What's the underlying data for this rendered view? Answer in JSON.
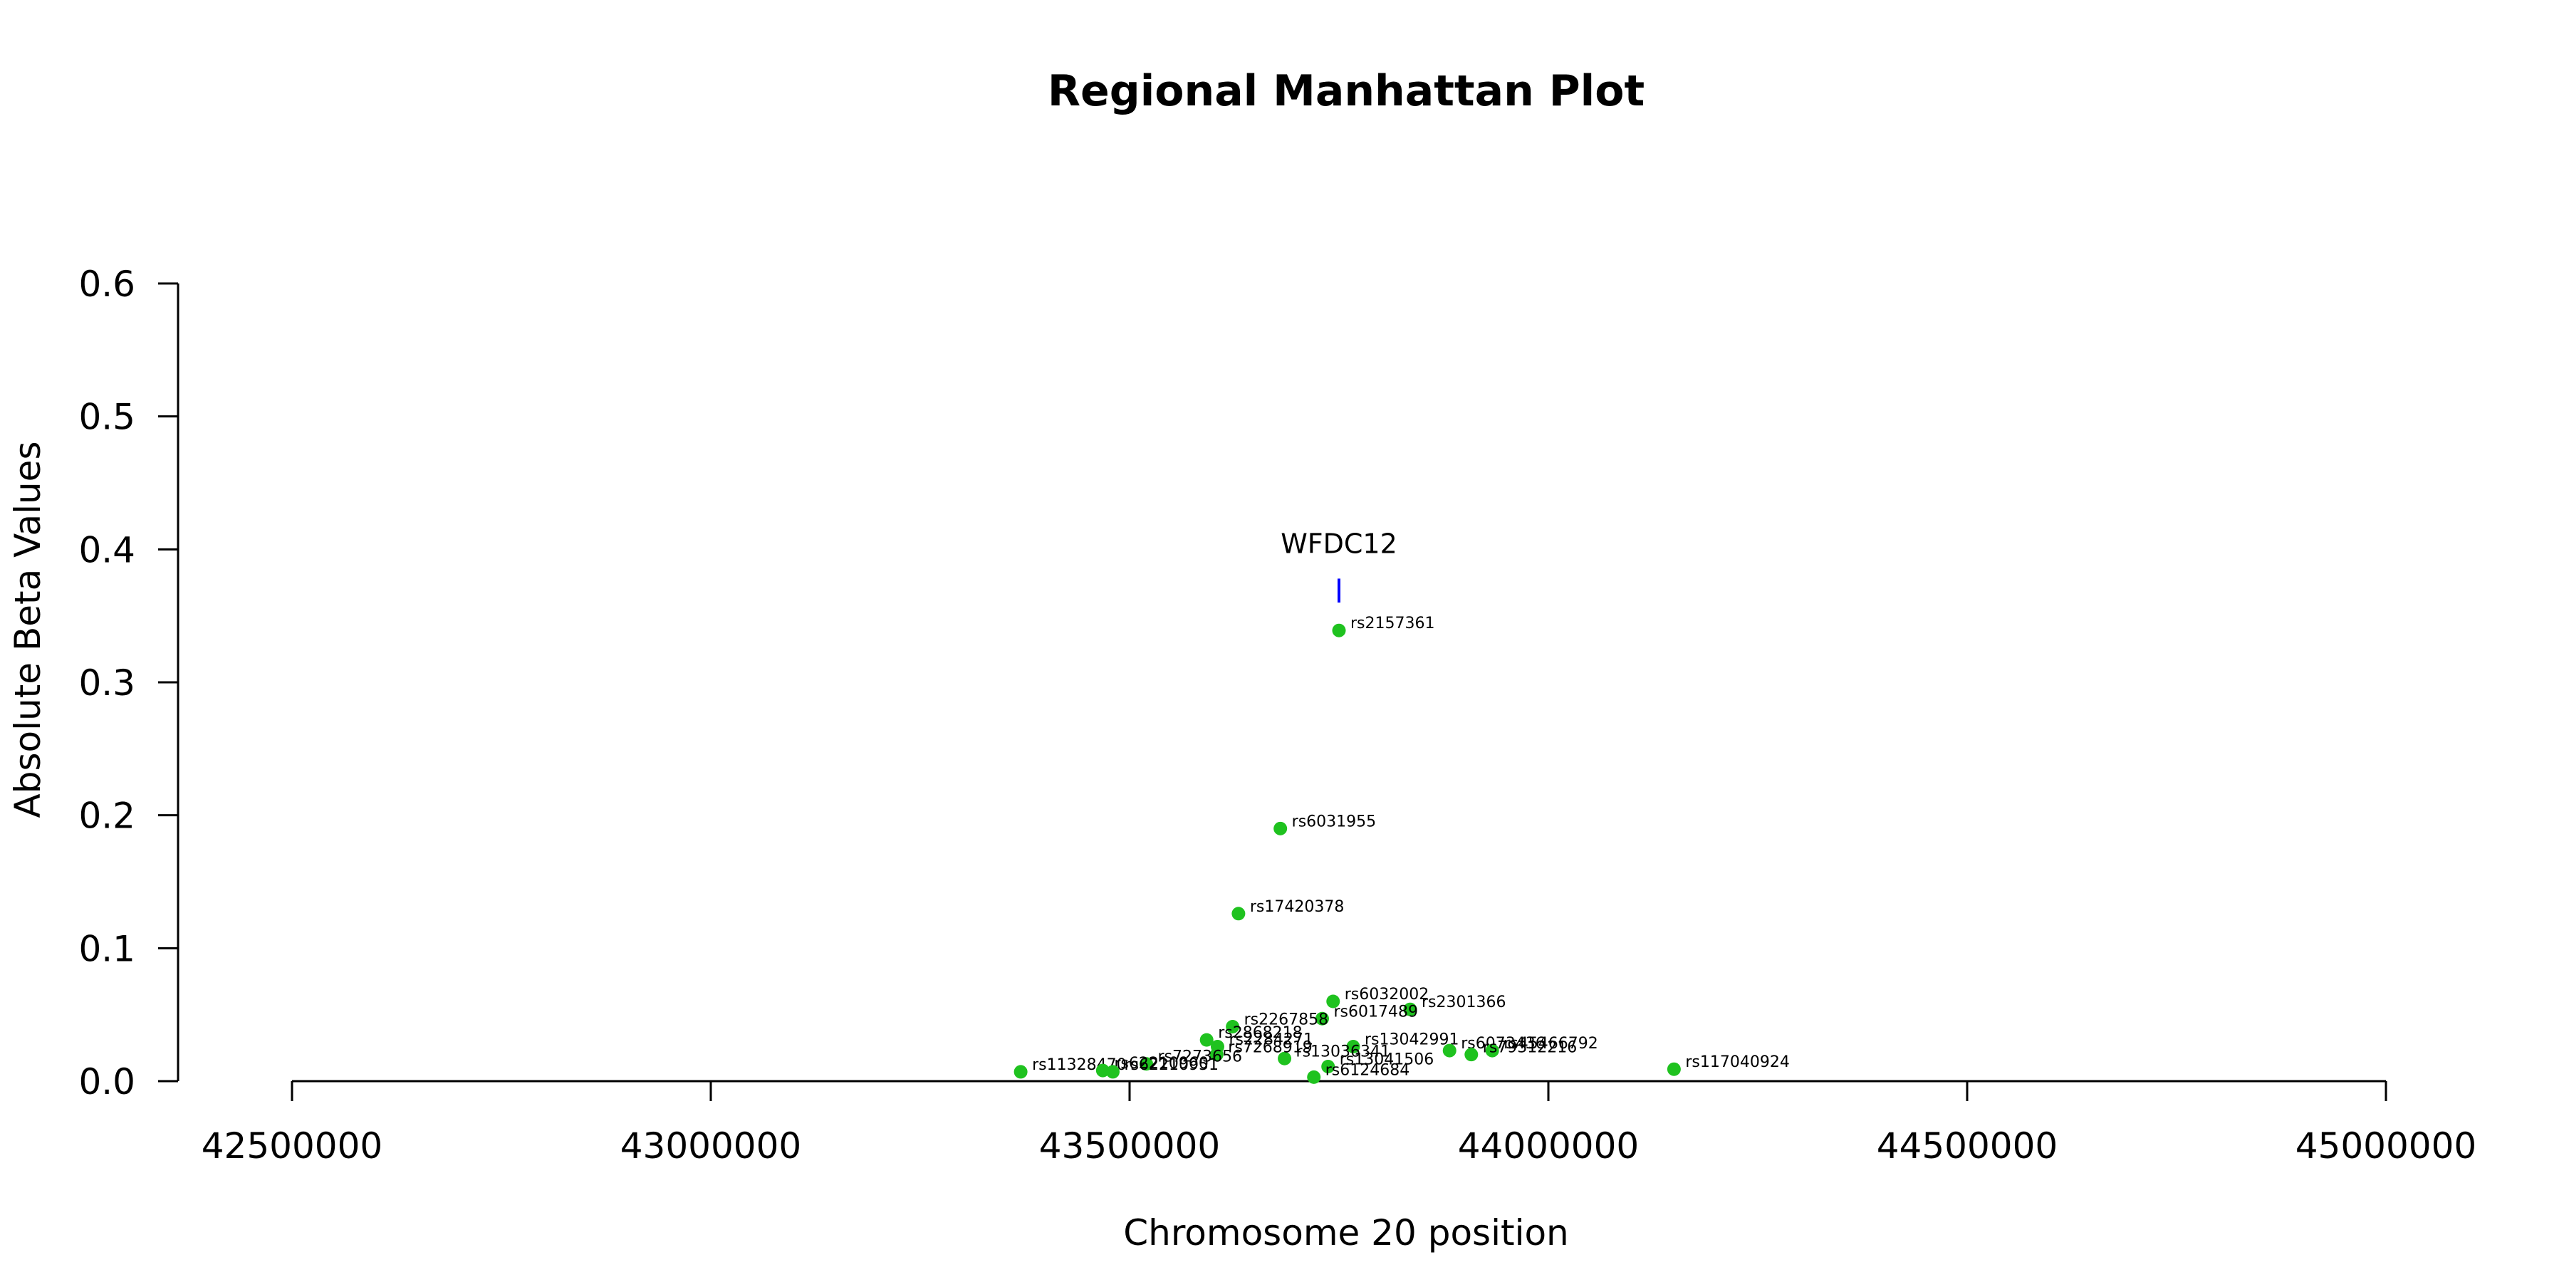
{
  "chart_data": {
    "type": "scatter",
    "title": "Regional Manhattan Plot",
    "xlabel": "Chromosome 20 position",
    "ylabel": "Absolute Beta Values",
    "xlim": [
      42500000,
      45000000
    ],
    "ylim": [
      0,
      0.6
    ],
    "xticks": [
      42500000,
      43000000,
      43500000,
      44000000,
      44500000,
      45000000
    ],
    "xtick_labels": [
      "42500000",
      "43000000",
      "43500000",
      "44000000",
      "44500000",
      "45000000"
    ],
    "yticks": [
      0.0,
      0.1,
      0.2,
      0.3,
      0.4,
      0.5,
      0.6
    ],
    "ytick_labels": [
      "0.0",
      "0.1",
      "0.2",
      "0.3",
      "0.4",
      "0.5",
      "0.6"
    ],
    "grid": false,
    "point_color": "#1fc21f",
    "gene_marker_color": "#0000ff",
    "gene": {
      "name": "WFDC12",
      "position": 43750000,
      "marker_y": [
        0.36,
        0.378
      ]
    },
    "points": [
      {
        "label": "rs2157361",
        "x": 43750000,
        "y": 0.339
      },
      {
        "label": "rs6031955",
        "x": 43680000,
        "y": 0.19
      },
      {
        "label": "rs17420378",
        "x": 43630000,
        "y": 0.126
      },
      {
        "label": "rs6032002",
        "x": 43743000,
        "y": 0.06
      },
      {
        "label": "rs2301366",
        "x": 43835000,
        "y": 0.054
      },
      {
        "label": "rs6017489",
        "x": 43730000,
        "y": 0.047
      },
      {
        "label": "rs2267858",
        "x": 43623000,
        "y": 0.041
      },
      {
        "label": "rs2868218",
        "x": 43592000,
        "y": 0.031
      },
      {
        "label": "rs13042991",
        "x": 43767000,
        "y": 0.026
      },
      {
        "label": "rs2284271",
        "x": 43605000,
        "y": 0.026
      },
      {
        "label": "rs6073436",
        "x": 43882000,
        "y": 0.023
      },
      {
        "label": "rs45466792",
        "x": 43933000,
        "y": 0.023
      },
      {
        "label": "rs79312216",
        "x": 43908000,
        "y": 0.02
      },
      {
        "label": "rs13036341",
        "x": 43685000,
        "y": 0.017
      },
      {
        "label": "rs7268919",
        "x": 43604000,
        "y": 0.02
      },
      {
        "label": "rs7273656",
        "x": 43520000,
        "y": 0.013
      },
      {
        "label": "rs13041506",
        "x": 43737000,
        "y": 0.011
      },
      {
        "label": "rs117040924",
        "x": 44150000,
        "y": 0.009
      },
      {
        "label": "rs11328470",
        "x": 43370000,
        "y": 0.007
      },
      {
        "label": "rs62210960",
        "x": 43468000,
        "y": 0.008
      },
      {
        "label": "rs62210951",
        "x": 43480000,
        "y": 0.007
      },
      {
        "label": "rs6124684",
        "x": 43720000,
        "y": 0.003
      }
    ]
  }
}
